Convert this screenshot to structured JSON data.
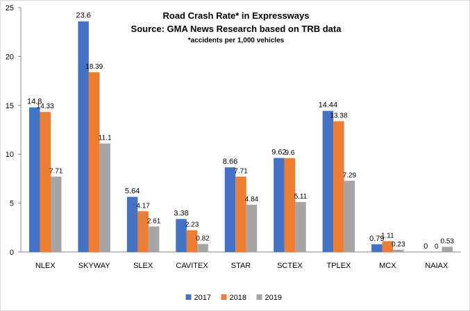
{
  "chart_data": {
    "type": "bar",
    "title_lines": [
      "Road Crash Rate* in Expressways",
      "Source: GMA News  Research based on TRB data",
      "*accidents per 1,000 vehicles"
    ],
    "categories": [
      "NLEX",
      "SKYWAY",
      "SLEX",
      "CAVITEX",
      "STAR",
      "SCTEX",
      "TPLEX",
      "MCX",
      "NAIAX"
    ],
    "series": [
      {
        "name": "2017",
        "color": "#4472c4",
        "values": [
          14.8,
          23.6,
          5.64,
          3.38,
          8.66,
          9.62,
          14.44,
          0.79,
          0
        ]
      },
      {
        "name": "2018",
        "color": "#ed7d31",
        "values": [
          14.33,
          18.39,
          4.17,
          2.23,
          7.71,
          9.6,
          13.38,
          1.11,
          0
        ]
      },
      {
        "name": "2019",
        "color": "#a5a5a5",
        "values": [
          7.71,
          11.1,
          2.61,
          0.82,
          4.84,
          5.11,
          7.29,
          0.23,
          0.53
        ]
      }
    ],
    "data_labels": [
      [
        "14.8",
        "23.6",
        "5.64",
        "3.38",
        "8.66",
        "9.62",
        "14.44",
        "0.79",
        "0"
      ],
      [
        "14.33",
        "18.39",
        "4.17",
        "2.23",
        "7.71",
        "9.6",
        "13.38",
        "1.11",
        "0"
      ],
      [
        "7.71",
        "11.1",
        "2.61",
        "0.82",
        "4.84",
        "5.11",
        "7.29",
        "0.23",
        "0.53"
      ]
    ],
    "ylim": [
      0,
      25
    ],
    "yticks": [
      0,
      5,
      10,
      15,
      20,
      25
    ],
    "grid": false,
    "legend_position": "bottom",
    "xlabel": "",
    "ylabel": ""
  }
}
